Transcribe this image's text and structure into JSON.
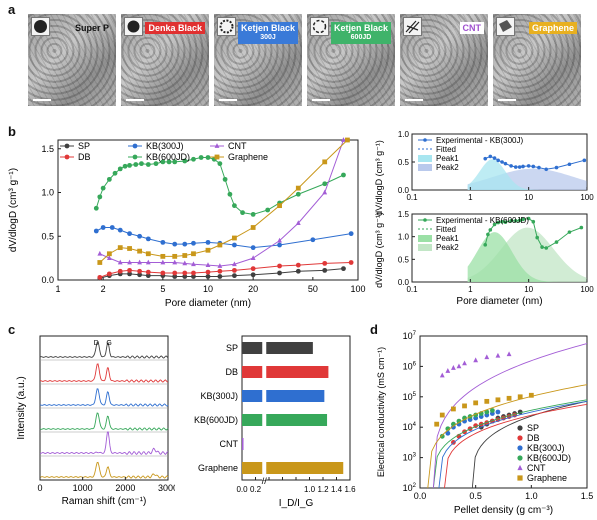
{
  "panels": {
    "a": "a",
    "b": "b",
    "c": "c",
    "d": "d"
  },
  "tem_labels": [
    {
      "name": "Super P",
      "color": "#444444",
      "text_color": "#ffffff"
    },
    {
      "name": "Denka Black",
      "color": "#e03030",
      "text_color": "#ffffff"
    },
    {
      "name": "Ketjen Black",
      "sub": "300J",
      "color": "#3a7ad8",
      "text_color": "#ffffff"
    },
    {
      "name": "Ketjen Black",
      "sub": "600JD",
      "color": "#3fb36a",
      "text_color": "#ffffff"
    },
    {
      "name": "CNT",
      "color": "#ffffff",
      "text_color": "#a050d0"
    },
    {
      "name": "Graphene",
      "color": "#e8b020",
      "text_color": "#ffffff"
    }
  ],
  "colors": {
    "SP": "#404040",
    "DB": "#e03838",
    "KB300": "#2f6fd0",
    "KB600": "#36a85a",
    "CNT": "#a35dd6",
    "Graphene": "#c9971a"
  },
  "chart_data": [
    {
      "id": "b_main",
      "type": "line",
      "xlabel": "Pore diameter (nm)",
      "ylabel": "dV/dlogD (cm³ g⁻¹)",
      "xscale": "log",
      "xlim": [
        1,
        100
      ],
      "ylim": [
        0,
        1.6
      ],
      "xticks": [
        1,
        2,
        5,
        10,
        20,
        50,
        100
      ],
      "yticks": [
        0.0,
        0.5,
        1.0,
        1.5
      ],
      "ytick_labels": [
        "0.0",
        "0.5",
        "1.0",
        "1.5"
      ],
      "legend": [
        "SP",
        "DB",
        "KB(300J)",
        "KB(600JD)",
        "CNT",
        "Graphene"
      ],
      "series": [
        {
          "name": "SP",
          "key": "SP",
          "marker": "circle",
          "x": [
            1.9,
            2.2,
            2.6,
            3.0,
            3.5,
            4,
            5,
            6,
            7,
            8,
            10,
            12,
            15,
            20,
            30,
            40,
            60,
            80
          ],
          "y": [
            0.02,
            0.05,
            0.07,
            0.07,
            0.06,
            0.05,
            0.05,
            0.04,
            0.04,
            0.04,
            0.04,
            0.04,
            0.05,
            0.06,
            0.08,
            0.1,
            0.11,
            0.13
          ]
        },
        {
          "name": "DB",
          "key": "DB",
          "marker": "circle",
          "x": [
            1.9,
            2.2,
            2.6,
            3.0,
            3.5,
            4,
            5,
            6,
            7,
            8,
            10,
            12,
            15,
            20,
            30,
            40,
            60,
            90
          ],
          "y": [
            0.03,
            0.07,
            0.1,
            0.11,
            0.1,
            0.09,
            0.08,
            0.08,
            0.08,
            0.08,
            0.09,
            0.1,
            0.11,
            0.13,
            0.16,
            0.17,
            0.19,
            0.2
          ]
        },
        {
          "name": "KB(300J)",
          "key": "KB300",
          "marker": "circle",
          "x": [
            1.8,
            2.0,
            2.3,
            2.6,
            3.0,
            3.5,
            4,
            5,
            6,
            7,
            8,
            10,
            12,
            15,
            20,
            30,
            50,
            90
          ],
          "y": [
            0.56,
            0.6,
            0.6,
            0.57,
            0.53,
            0.5,
            0.47,
            0.43,
            0.41,
            0.41,
            0.42,
            0.43,
            0.42,
            0.4,
            0.37,
            0.4,
            0.46,
            0.53
          ]
        },
        {
          "name": "KB(600JD)",
          "key": "KB600",
          "marker": "circle",
          "x": [
            1.8,
            1.9,
            2.0,
            2.2,
            2.4,
            2.6,
            2.8,
            3.0,
            3.3,
            3.6,
            4,
            4.5,
            5,
            5.5,
            6,
            7,
            8,
            9,
            10,
            11,
            12,
            13,
            14,
            15,
            17,
            20,
            25,
            30,
            40,
            60,
            80
          ],
          "y": [
            0.82,
            0.95,
            1.05,
            1.15,
            1.22,
            1.27,
            1.3,
            1.31,
            1.32,
            1.33,
            1.32,
            1.33,
            1.35,
            1.35,
            1.35,
            1.36,
            1.38,
            1.4,
            1.4,
            1.38,
            1.33,
            1.15,
            0.98,
            0.85,
            0.77,
            0.75,
            0.8,
            0.88,
            0.98,
            1.1,
            1.2
          ]
        },
        {
          "name": "CNT",
          "key": "CNT",
          "marker": "triangle",
          "x": [
            1.9,
            2.2,
            2.6,
            3.0,
            3.5,
            4,
            5,
            6,
            7,
            8,
            10,
            12,
            15,
            20,
            30,
            40,
            60,
            80
          ],
          "y": [
            0.3,
            0.25,
            0.2,
            0.2,
            0.2,
            0.2,
            0.2,
            0.2,
            0.19,
            0.18,
            0.17,
            0.16,
            0.18,
            0.25,
            0.45,
            0.65,
            1.0,
            1.6
          ]
        },
        {
          "name": "Graphene",
          "key": "Graphene",
          "marker": "square",
          "x": [
            1.9,
            2.2,
            2.6,
            3.0,
            3.5,
            4,
            5,
            6,
            7,
            8,
            10,
            12,
            15,
            20,
            30,
            40,
            60,
            85
          ],
          "y": [
            0.2,
            0.3,
            0.37,
            0.36,
            0.33,
            0.3,
            0.27,
            0.27,
            0.28,
            0.3,
            0.34,
            0.4,
            0.48,
            0.6,
            0.85,
            1.05,
            1.35,
            1.6
          ]
        }
      ]
    },
    {
      "id": "b_kb300",
      "type": "area",
      "xscale": "log",
      "xlim": [
        0.1,
        100
      ],
      "ylim": [
        0,
        1.0
      ],
      "yticks": [
        0.0,
        0.5,
        1.0
      ],
      "ytick_labels": [
        "0.0",
        "0.5",
        "1.0"
      ],
      "xticks": [
        0.1,
        1,
        10,
        100
      ],
      "xtick_labels": [
        "0.1",
        "1",
        "10",
        "100"
      ],
      "legend": [
        "Experimental - KB(300J)",
        "Fitted",
        "Peak1",
        "Peak2"
      ],
      "experimental": {
        "x": [
          1.8,
          2.2,
          2.6,
          3,
          3.5,
          4,
          5,
          6,
          7,
          8,
          10,
          12,
          15,
          20,
          30,
          50,
          90
        ],
        "y": [
          0.56,
          0.6,
          0.57,
          0.53,
          0.5,
          0.47,
          0.43,
          0.41,
          0.41,
          0.42,
          0.43,
          0.42,
          0.4,
          0.37,
          0.4,
          0.46,
          0.53
        ]
      },
      "peak1": {
        "center": 2.4,
        "width": 0.22,
        "height": 0.55
      },
      "peak2": {
        "center": 12,
        "width": 0.7,
        "height": 0.38
      }
    },
    {
      "id": "b_kb600",
      "type": "area",
      "xscale": "log",
      "xlim": [
        0.1,
        100
      ],
      "ylim": [
        0,
        1.5
      ],
      "yticks": [
        0.0,
        0.5,
        1.0,
        1.5
      ],
      "ytick_labels": [
        "0.0",
        "0.5",
        "1.0",
        "1.5"
      ],
      "xticks": [
        0.1,
        1,
        10,
        100
      ],
      "xtick_labels": [
        "0.1",
        "1",
        "10",
        "100"
      ],
      "xlabel": "Pore diameter (nm)",
      "ylabel": "dV/dlogD (cm³ g⁻¹)",
      "legend": [
        "Experimental - KB(600JD)",
        "Fitted",
        "Peak1",
        "Peak2"
      ],
      "experimental": {
        "x": [
          1.8,
          2.0,
          2.2,
          2.6,
          3.0,
          3.5,
          4,
          5,
          6,
          7,
          8,
          10,
          12,
          14,
          17,
          20,
          30,
          50,
          80
        ],
        "y": [
          0.82,
          1.05,
          1.15,
          1.27,
          1.31,
          1.33,
          1.32,
          1.35,
          1.35,
          1.36,
          1.38,
          1.4,
          1.33,
          0.98,
          0.77,
          0.75,
          0.88,
          1.1,
          1.2
        ]
      },
      "peak1": {
        "center": 2.6,
        "width": 0.3,
        "height": 1.1
      },
      "peak2": {
        "center": 9.5,
        "width": 0.45,
        "height": 1.2
      }
    },
    {
      "id": "c_raman",
      "type": "line",
      "xlabel": "Raman shift (cm⁻¹)",
      "ylabel": "Intensity (a.u.)",
      "xlim": [
        0,
        3000
      ],
      "xticks": [
        0,
        1000,
        2000,
        3000
      ],
      "annotations": [
        "D",
        "G"
      ],
      "series": [
        {
          "key": "SP",
          "D": 0.8,
          "G": 0.75
        },
        {
          "key": "DB",
          "D": 0.9,
          "G": 0.7
        },
        {
          "key": "KB300",
          "D": 0.85,
          "G": 0.7
        },
        {
          "key": "KB600",
          "D": 0.85,
          "G": 0.7
        },
        {
          "key": "CNT",
          "D": 0.03,
          "G": 0.9
        },
        {
          "key": "Graphene",
          "D": 0.8,
          "G": 0.55
        }
      ]
    },
    {
      "id": "c_ratio",
      "type": "bar",
      "orientation": "horizontal",
      "categories": [
        "SP",
        "DB",
        "KB(300J)",
        "KB(600JD)",
        "CNT",
        "Graphene"
      ],
      "keys": [
        "SP",
        "DB",
        "KB300",
        "KB600",
        "CNT",
        "Graphene"
      ],
      "values": [
        1.05,
        1.28,
        1.22,
        1.26,
        0.02,
        1.5
      ],
      "xlabel": "I_D/I_G",
      "xlim": [
        0,
        1.6
      ],
      "xticks": [
        0.0,
        0.2,
        0.4,
        0.6,
        0.8,
        1.0,
        1.2,
        1.4,
        1.6
      ],
      "xtick_labels": [
        "0.0",
        "0.2",
        "",
        "",
        "",
        "1.0",
        "1.2",
        "1.4",
        "1.6"
      ],
      "break": [
        0.3,
        0.9
      ]
    },
    {
      "id": "d_conductivity",
      "type": "scatter",
      "xlabel": "Pellet density (g cm⁻³)",
      "ylabel": "Electrical conductivity (mS cm⁻¹)",
      "xlim": [
        0,
        1.5
      ],
      "ylim_log10": [
        2,
        7
      ],
      "xticks": [
        0.0,
        0.5,
        1.0,
        1.5
      ],
      "yticks_log10": [
        2,
        3,
        4,
        5,
        6,
        7
      ],
      "legend": [
        "SP",
        "DB",
        "KB(300J)",
        "KB(600JD)",
        "CNT",
        "Graphene"
      ],
      "series": [
        {
          "name": "SP",
          "key": "SP",
          "marker": "circle",
          "x": [
            0.55,
            0.6,
            0.65,
            0.7,
            0.75,
            0.8,
            0.85,
            0.9
          ],
          "y_log10": [
            4.0,
            4.1,
            4.2,
            4.3,
            4.35,
            4.4,
            4.45,
            4.5
          ]
        },
        {
          "name": "DB",
          "key": "DB",
          "marker": "circle",
          "x": [
            0.3,
            0.35,
            0.4,
            0.45,
            0.5,
            0.55,
            0.6,
            0.65,
            0.7,
            0.75,
            0.8,
            0.85
          ],
          "y_log10": [
            3.5,
            3.7,
            3.85,
            3.95,
            4.05,
            4.1,
            4.15,
            4.2,
            4.25,
            4.3,
            4.35,
            4.4
          ]
        },
        {
          "name": "KB(300J)",
          "key": "KB300",
          "marker": "circle",
          "x": [
            0.25,
            0.3,
            0.35,
            0.4,
            0.45,
            0.5,
            0.55,
            0.6,
            0.65,
            0.7
          ],
          "y_log10": [
            3.8,
            4.0,
            4.1,
            4.2,
            4.25,
            4.3,
            4.35,
            4.4,
            4.45,
            4.5
          ]
        },
        {
          "name": "KB(600JD)",
          "key": "KB600",
          "marker": "circle",
          "x": [
            0.2,
            0.25,
            0.3,
            0.35,
            0.4,
            0.45,
            0.5,
            0.55,
            0.6,
            0.65
          ],
          "y_log10": [
            3.7,
            3.95,
            4.1,
            4.2,
            4.3,
            4.35,
            4.4,
            4.45,
            4.5,
            4.55
          ]
        },
        {
          "name": "CNT",
          "key": "CNT",
          "marker": "triangle",
          "x": [
            0.2,
            0.25,
            0.3,
            0.35,
            0.4,
            0.5,
            0.6,
            0.7,
            0.8
          ],
          "y_log10": [
            5.7,
            5.85,
            5.95,
            6.0,
            6.1,
            6.2,
            6.3,
            6.35,
            6.4
          ]
        },
        {
          "name": "Graphene",
          "key": "Graphene",
          "marker": "square",
          "x": [
            0.15,
            0.2,
            0.3,
            0.4,
            0.5,
            0.6,
            0.7,
            0.8,
            0.9,
            1.0
          ],
          "y_log10": [
            4.1,
            4.4,
            4.6,
            4.7,
            4.8,
            4.85,
            4.9,
            4.95,
            5.0,
            5.05
          ]
        }
      ]
    }
  ]
}
